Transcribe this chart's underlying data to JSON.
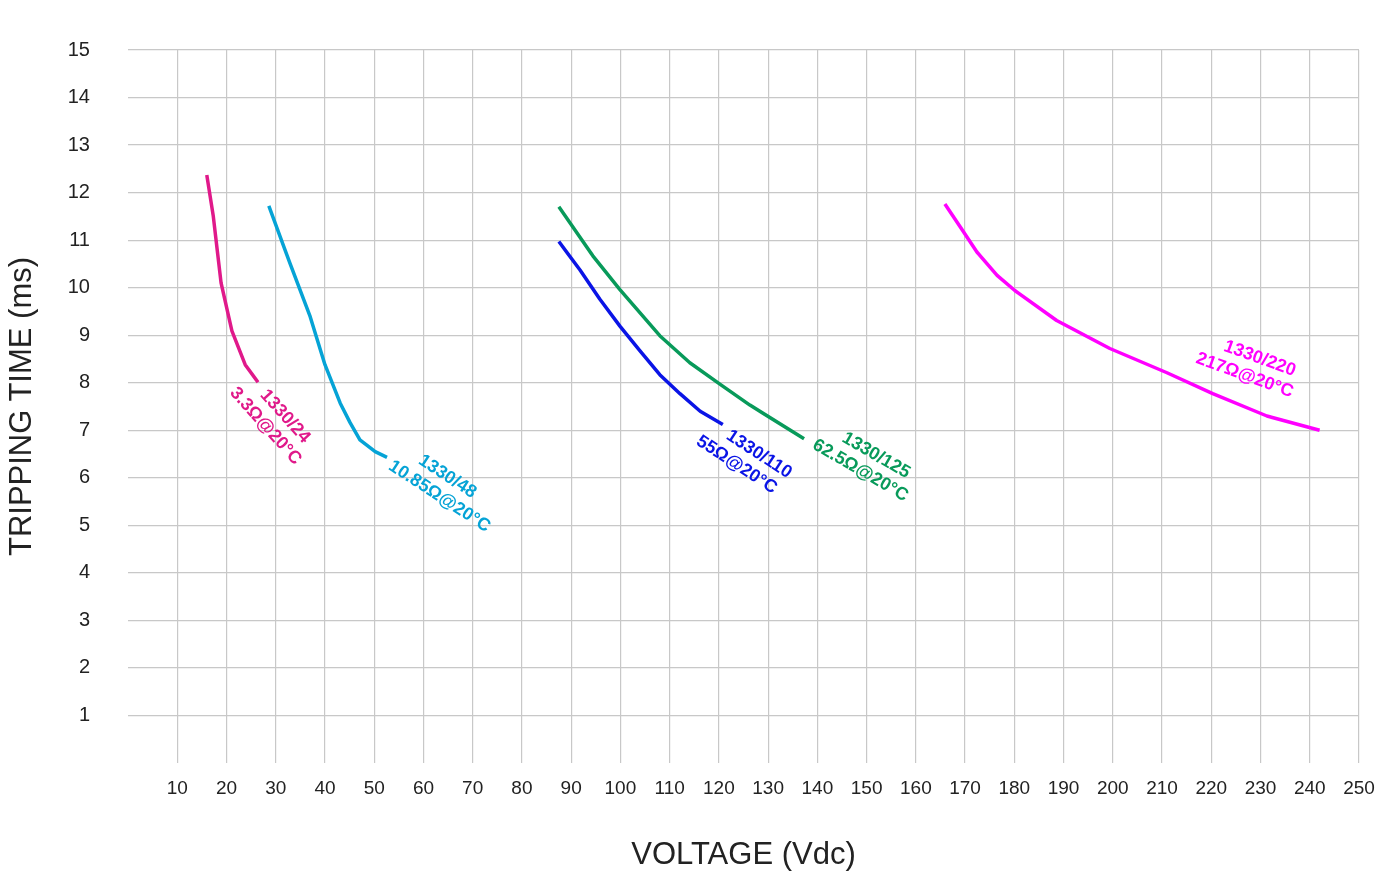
{
  "chart_data": {
    "type": "line",
    "xlabel": "VOLTAGE (Vdc)",
    "ylabel": "TRIPPING TIME (ms)",
    "xlim": [
      0,
      250
    ],
    "ylim": [
      0,
      15
    ],
    "xticks": [
      10,
      20,
      30,
      40,
      50,
      60,
      70,
      80,
      90,
      100,
      110,
      120,
      130,
      140,
      150,
      160,
      170,
      180,
      190,
      200,
      210,
      220,
      230,
      240,
      250
    ],
    "yticks": [
      1,
      2,
      3,
      4,
      5,
      6,
      7,
      8,
      9,
      10,
      11,
      12,
      13,
      14,
      15
    ],
    "grid": true,
    "legend": false,
    "marker": "none",
    "line_style": "solid",
    "series": [
      {
        "name": "1330/24\n3.3Ω@20°C",
        "color": "#e0198a",
        "x": [
          16.0,
          17.3,
          18.9,
          21.1,
          23.8,
          26.4
        ],
        "values": [
          12.37,
          11.52,
          10.1,
          9.09,
          8.38,
          8.01
        ]
      },
      {
        "name": "1330/48\n10.85Ω@20°C",
        "color": "#05a3d6",
        "x": [
          28.6,
          32.9,
          37.0,
          40.0,
          43.1,
          45.1,
          47.1,
          50.2,
          52.6
        ],
        "values": [
          11.72,
          10.51,
          9.39,
          8.38,
          7.57,
          7.16,
          6.8,
          6.55,
          6.43
        ]
      },
      {
        "name": "1330/110\n55Ω@20°C",
        "color": "#0a14e6",
        "x": [
          87.5,
          91.8,
          95.8,
          99.9,
          103.9,
          108.0,
          112.1,
          116.2,
          120.8
        ],
        "values": [
          10.97,
          10.37,
          9.76,
          9.19,
          8.68,
          8.17,
          7.77,
          7.4,
          7.12
        ]
      },
      {
        "name": "1330/125\n62.5Ω@20°C",
        "color": "#089a5a",
        "x": [
          87.5,
          94.4,
          99.9,
          108.0,
          114.1,
          120.2,
          126.3,
          137.3
        ],
        "values": [
          11.7,
          10.67,
          9.96,
          8.99,
          8.42,
          7.97,
          7.53,
          6.82
        ]
      },
      {
        "name": "1330/220\n217Ω@20°C",
        "color": "#ff00ff",
        "x": [
          165.9,
          169.4,
          172.4,
          176.5,
          180.1,
          188.6,
          199.4,
          211.0,
          220.3,
          231.3,
          242.0
        ],
        "values": [
          11.76,
          11.22,
          10.75,
          10.26,
          9.94,
          9.31,
          8.72,
          8.21,
          7.77,
          7.3,
          7.0
        ]
      }
    ]
  }
}
